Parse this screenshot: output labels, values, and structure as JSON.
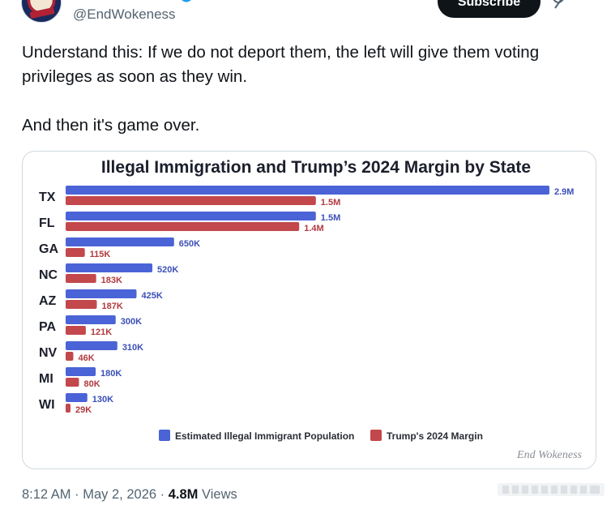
{
  "tweet": {
    "handle": "@EndWokeness",
    "subscribe_label": "Subscribe",
    "text_paragraphs": [
      "Understand this: If we do not deport them, the left will give them voting privileges as soon as they win.",
      "And then it's game over."
    ],
    "time": "8:12 AM",
    "date": "May 2, 2026",
    "separator": "·",
    "views_count": "4.8M",
    "views_label": "Views"
  },
  "colors": {
    "accent_blue": "#1d9bf0",
    "immigrant_bar": "#4a63d6",
    "margin_bar": "#c2484c"
  },
  "icons": [
    "verified-badge-icon",
    "grok-icon",
    "more-options-icon"
  ],
  "chart_data": {
    "type": "bar",
    "orientation": "horizontal",
    "title": "Illegal Immigration and Trump’s 2024 Margin by State",
    "categories": [
      "TX",
      "FL",
      "GA",
      "NC",
      "AZ",
      "PA",
      "NV",
      "MI",
      "WI"
    ],
    "series": [
      {
        "name": "Estimated Illegal Immigrant Population",
        "values": [
          2900000,
          1500000,
          650000,
          520000,
          425000,
          300000,
          310000,
          180000,
          130000
        ],
        "labels": [
          "2.9M",
          "1.5M",
          "650K",
          "520K",
          "425K",
          "300K",
          "310K",
          "180K",
          "130K"
        ],
        "color": "#4a63d6"
      },
      {
        "name": "Trump's 2024 Margin",
        "values": [
          1500000,
          1400000,
          115000,
          183000,
          187000,
          121000,
          46000,
          80000,
          29000
        ],
        "labels": [
          "1.5M",
          "1.4M",
          "115K",
          "183K",
          "187K",
          "121K",
          "46K",
          "80K",
          "29K"
        ],
        "color": "#c2484c"
      }
    ],
    "xlim": [
      0,
      2900000
    ],
    "grid": false,
    "legend_position": "bottom",
    "watermark": "End Wokeness"
  }
}
